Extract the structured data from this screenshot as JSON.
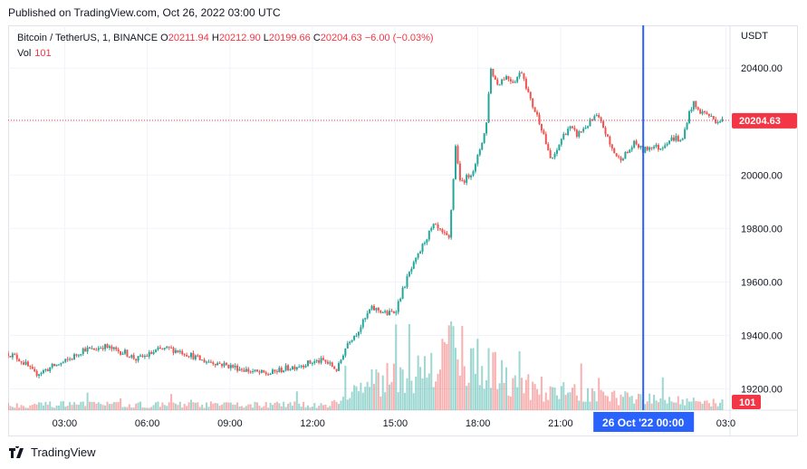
{
  "header": {
    "published": "Published on TradingView.com, Oct 26, 2022 03:00 UTC"
  },
  "legend": {
    "symbol": "Bitcoin / TetherUS, 1, BINANCE",
    "o_label": "O",
    "o_value": "20211.94",
    "h_label": "H",
    "h_value": "20212.90",
    "l_label": "L",
    "l_value": "20199.66",
    "c_label": "C",
    "c_value": "20204.63",
    "change": "−6.00 (−0.03%)",
    "vol_label": "Vol",
    "vol_value": "101"
  },
  "footer": {
    "brand": "TradingView",
    "logo_icon": "tradingview-logo-icon"
  },
  "colors": {
    "up": "#26a69a",
    "down": "#ef5350",
    "price_line": "#f23645",
    "crosshair": "#2962ff",
    "grid": "#f0f3fa",
    "text": "#131722"
  },
  "chart_data": {
    "type": "candlestick",
    "title": "Bitcoin / TetherUS, 1, BINANCE",
    "currency": "USDT",
    "ylim": [
      19120,
      20560
    ],
    "y_ticks": [
      20400,
      20200,
      20000,
      19800,
      19600,
      19400,
      19200
    ],
    "y_tick_labels": [
      "20400.00",
      "20200.00",
      "20000.00",
      "19800.00",
      "19600.00",
      "19400.00",
      "19200.00"
    ],
    "x_tick_labels": [
      "03:00",
      "06:00",
      "09:00",
      "12:00",
      "15:00",
      "18:00",
      "21:00",
      "03:0"
    ],
    "x_tick_hours": [
      3,
      6,
      9,
      12,
      15,
      18,
      21,
      27
    ],
    "x_range_hours": [
      0.95,
      27.15
    ],
    "last_price": 20204.63,
    "last_price_label": "20204.63",
    "last_volume_label": "101",
    "crosshair_hour": 24,
    "crosshair_label": "26 Oct '22   00:00",
    "close_path": [
      [
        0.95,
        19333
      ],
      [
        1.3,
        19315
      ],
      [
        1.6,
        19290
      ],
      [
        1.9,
        19255
      ],
      [
        2.2,
        19265
      ],
      [
        2.6,
        19285
      ],
      [
        3.0,
        19300
      ],
      [
        3.4,
        19325
      ],
      [
        3.7,
        19350
      ],
      [
        4.0,
        19345
      ],
      [
        4.4,
        19360
      ],
      [
        4.8,
        19345
      ],
      [
        5.2,
        19335
      ],
      [
        5.6,
        19310
      ],
      [
        6.0,
        19325
      ],
      [
        6.4,
        19345
      ],
      [
        6.8,
        19350
      ],
      [
        7.2,
        19340
      ],
      [
        7.6,
        19325
      ],
      [
        8.0,
        19305
      ],
      [
        8.4,
        19300
      ],
      [
        8.8,
        19290
      ],
      [
        9.2,
        19280
      ],
      [
        9.6,
        19270
      ],
      [
        10.0,
        19260
      ],
      [
        10.4,
        19255
      ],
      [
        10.8,
        19270
      ],
      [
        11.2,
        19280
      ],
      [
        11.6,
        19290
      ],
      [
        12.0,
        19300
      ],
      [
        12.4,
        19305
      ],
      [
        12.7,
        19285
      ],
      [
        12.9,
        19270
      ],
      [
        13.1,
        19330
      ],
      [
        13.3,
        19380
      ],
      [
        13.6,
        19410
      ],
      [
        13.9,
        19460
      ],
      [
        14.1,
        19500
      ],
      [
        14.4,
        19495
      ],
      [
        14.7,
        19480
      ],
      [
        15.0,
        19490
      ],
      [
        15.2,
        19550
      ],
      [
        15.5,
        19630
      ],
      [
        15.8,
        19690
      ],
      [
        16.1,
        19760
      ],
      [
        16.4,
        19810
      ],
      [
        16.7,
        19780
      ],
      [
        16.95,
        19760
      ],
      [
        17.05,
        19900
      ],
      [
        17.2,
        20120
      ],
      [
        17.35,
        19970
      ],
      [
        17.6,
        19990
      ],
      [
        17.9,
        20030
      ],
      [
        18.1,
        20110
      ],
      [
        18.3,
        20180
      ],
      [
        18.45,
        20400
      ],
      [
        18.7,
        20340
      ],
      [
        19.0,
        20370
      ],
      [
        19.3,
        20350
      ],
      [
        19.6,
        20390
      ],
      [
        19.9,
        20280
      ],
      [
        20.2,
        20210
      ],
      [
        20.4,
        20150
      ],
      [
        20.6,
        20060
      ],
      [
        20.8,
        20070
      ],
      [
        21.0,
        20130
      ],
      [
        21.3,
        20180
      ],
      [
        21.6,
        20150
      ],
      [
        22.0,
        20190
      ],
      [
        22.3,
        20220
      ],
      [
        22.55,
        20180
      ],
      [
        22.8,
        20110
      ],
      [
        23.1,
        20060
      ],
      [
        23.4,
        20080
      ],
      [
        23.7,
        20120
      ],
      [
        24.0,
        20090
      ],
      [
        24.3,
        20110
      ],
      [
        24.6,
        20100
      ],
      [
        24.9,
        20130
      ],
      [
        25.2,
        20140
      ],
      [
        25.4,
        20120
      ],
      [
        25.6,
        20210
      ],
      [
        25.8,
        20270
      ],
      [
        26.0,
        20240
      ],
      [
        26.3,
        20230
      ],
      [
        26.6,
        20205
      ],
      [
        26.9,
        20204.63
      ]
    ],
    "volume_profile": [
      [
        0.95,
        6
      ],
      [
        12.5,
        6
      ],
      [
        12.9,
        10
      ],
      [
        13.5,
        22
      ],
      [
        14.3,
        30
      ],
      [
        15.0,
        36
      ],
      [
        15.8,
        40
      ],
      [
        16.5,
        45
      ],
      [
        17.1,
        80
      ],
      [
        17.6,
        55
      ],
      [
        18.3,
        45
      ],
      [
        19.0,
        38
      ],
      [
        20.0,
        26
      ],
      [
        21.0,
        20
      ],
      [
        22.0,
        16
      ],
      [
        23.0,
        14
      ],
      [
        24.0,
        12
      ],
      [
        25.0,
        11
      ],
      [
        26.0,
        10
      ],
      [
        27.0,
        8
      ]
    ],
    "grid": true,
    "legend_position": "top-left"
  }
}
